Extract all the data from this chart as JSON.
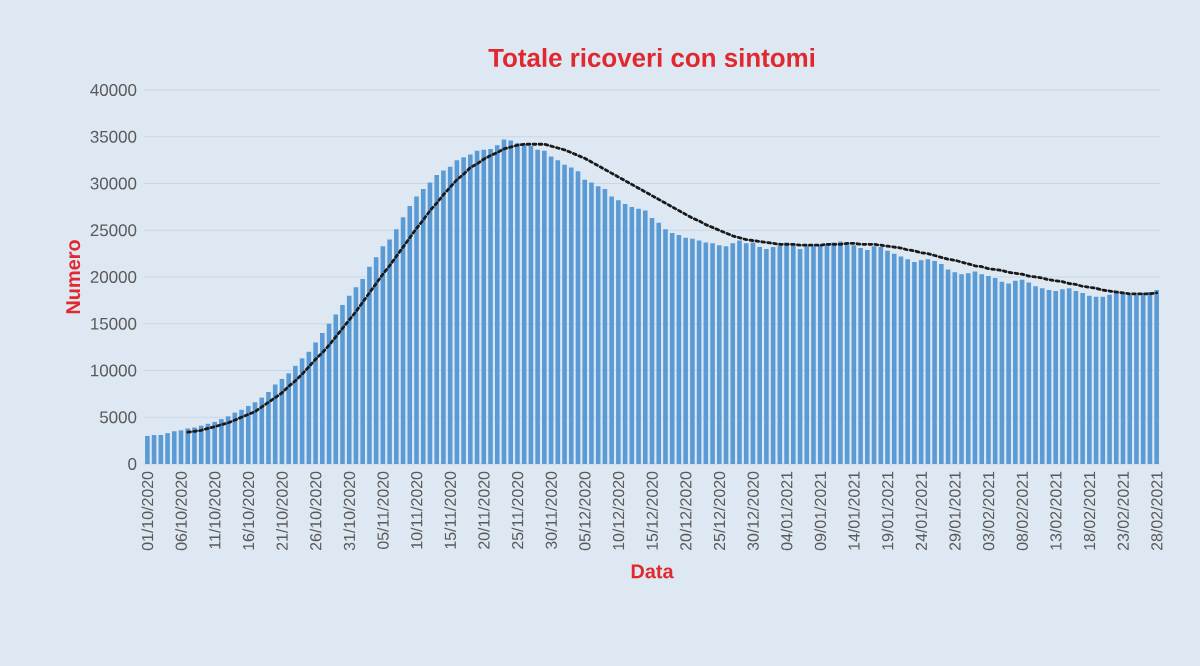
{
  "chart_data": {
    "type": "bar",
    "title": "Totale ricoveri con sintomi",
    "xlabel": "Data",
    "ylabel": "Numero",
    "categories": [
      "01/10/2020",
      null,
      null,
      null,
      null,
      "06/10/2020",
      null,
      null,
      null,
      null,
      "11/10/2020",
      null,
      null,
      null,
      null,
      "16/10/2020",
      null,
      null,
      null,
      null,
      "21/10/2020",
      null,
      null,
      null,
      null,
      "26/10/2020",
      null,
      null,
      null,
      null,
      "31/10/2020",
      null,
      null,
      null,
      null,
      "05/11/2020",
      null,
      null,
      null,
      null,
      "10/11/2020",
      null,
      null,
      null,
      null,
      "15/11/2020",
      null,
      null,
      null,
      null,
      "20/11/2020",
      null,
      null,
      null,
      null,
      "25/11/2020",
      null,
      null,
      null,
      null,
      "30/11/2020",
      null,
      null,
      null,
      null,
      "05/12/2020",
      null,
      null,
      null,
      null,
      "10/12/2020",
      null,
      null,
      null,
      null,
      "15/12/2020",
      null,
      null,
      null,
      null,
      "20/12/2020",
      null,
      null,
      null,
      null,
      "25/12/2020",
      null,
      null,
      null,
      null,
      "30/12/2020",
      null,
      null,
      null,
      null,
      "04/01/2021",
      null,
      null,
      null,
      null,
      "09/01/2021",
      null,
      null,
      null,
      null,
      "14/01/2021",
      null,
      null,
      null,
      null,
      "19/01/2021",
      null,
      null,
      null,
      null,
      "24/01/2021",
      null,
      null,
      null,
      null,
      "29/01/2021",
      null,
      null,
      null,
      null,
      "03/02/2021",
      null,
      null,
      null,
      null,
      "08/02/2021",
      null,
      null,
      null,
      null,
      "13/02/2021",
      null,
      null,
      null,
      null,
      "18/02/2021",
      null,
      null,
      null,
      null,
      "23/02/2021",
      null,
      null,
      null,
      null,
      "28/02/2021"
    ],
    "series": [
      {
        "color": "#5b9bd5",
        "values": [
          3000,
          3100,
          3100,
          3300,
          3500,
          3600,
          3800,
          3900,
          4100,
          4300,
          4500,
          4800,
          5100,
          5500,
          5800,
          6200,
          6600,
          7100,
          7700,
          8500,
          9100,
          9700,
          10500,
          11300,
          12000,
          13000,
          14000,
          15000,
          16000,
          17000,
          18000,
          18900,
          19800,
          21100,
          22100,
          23300,
          24000,
          25100,
          26400,
          27600,
          28600,
          29400,
          30100,
          30900,
          31400,
          31800,
          32500,
          32800,
          33100,
          33500,
          33600,
          33700,
          34100,
          34700,
          34600,
          34300,
          34200,
          34000,
          33600,
          33500,
          32900,
          32500,
          32000,
          31700,
          31300,
          30400,
          30100,
          29700,
          29400,
          28600,
          28200,
          27800,
          27500,
          27300,
          27100,
          26300,
          25800,
          25100,
          24700,
          24500,
          24200,
          24100,
          23900,
          23700,
          23600,
          23400,
          23300,
          23600,
          23900,
          23600,
          23700,
          23200,
          23000,
          23200,
          23400,
          23700,
          23400,
          23000,
          23300,
          23300,
          23400,
          23500,
          23700,
          23800,
          23600,
          23400,
          23100,
          22900,
          23300,
          23200,
          22800,
          22500,
          22200,
          21900,
          21600,
          21800,
          21900,
          21700,
          21400,
          20800,
          20500,
          20300,
          20400,
          20600,
          20300,
          20100,
          19900,
          19500,
          19300,
          19600,
          19700,
          19400,
          19000,
          18800,
          18600,
          18500,
          18700,
          18800,
          18500,
          18300,
          18000,
          17900,
          17900,
          18100,
          18300,
          18300,
          18100,
          18100,
          18300,
          18400,
          18600
        ]
      },
      {
        "type": "line",
        "color": "#1a1a1a",
        "line_style": "dotted",
        "values": [
          null,
          null,
          null,
          null,
          null,
          null,
          3400,
          3500,
          3600,
          3800,
          4000,
          4200,
          4400,
          4700,
          5000,
          5300,
          5600,
          6100,
          6600,
          7100,
          7600,
          8300,
          8900,
          9600,
          10400,
          11200,
          11900,
          12700,
          13600,
          14500,
          15400,
          16300,
          17300,
          18300,
          19300,
          20300,
          21200,
          22200,
          23200,
          24200,
          25200,
          26100,
          27100,
          27900,
          28800,
          29600,
          30400,
          31000,
          31700,
          32100,
          32600,
          33000,
          33300,
          33700,
          33900,
          34100,
          34200,
          34200,
          34200,
          34200,
          34000,
          33800,
          33600,
          33300,
          33000,
          32700,
          32300,
          31900,
          31500,
          31100,
          30700,
          30300,
          29900,
          29500,
          29100,
          28700,
          28300,
          27900,
          27500,
          27100,
          26700,
          26300,
          26000,
          25600,
          25300,
          25000,
          24700,
          24400,
          24200,
          24000,
          23900,
          23800,
          23700,
          23600,
          23500,
          23500,
          23500,
          23400,
          23400,
          23400,
          23400,
          23500,
          23500,
          23500,
          23600,
          23600,
          23500,
          23500,
          23500,
          23400,
          23300,
          23200,
          23100,
          22900,
          22800,
          22600,
          22500,
          22300,
          22100,
          21900,
          21800,
          21600,
          21400,
          21200,
          21100,
          20900,
          20800,
          20700,
          20500,
          20400,
          20300,
          20100,
          20000,
          19900,
          19700,
          19600,
          19500,
          19300,
          19200,
          19000,
          18900,
          18800,
          18600,
          18500,
          18400,
          18300,
          18200,
          18200,
          18200,
          18200,
          18300
        ]
      }
    ],
    "ylim": [
      0,
      40000
    ],
    "yticks": [
      0,
      5000,
      10000,
      15000,
      20000,
      25000,
      30000,
      35000,
      40000
    ],
    "grid": "y"
  }
}
